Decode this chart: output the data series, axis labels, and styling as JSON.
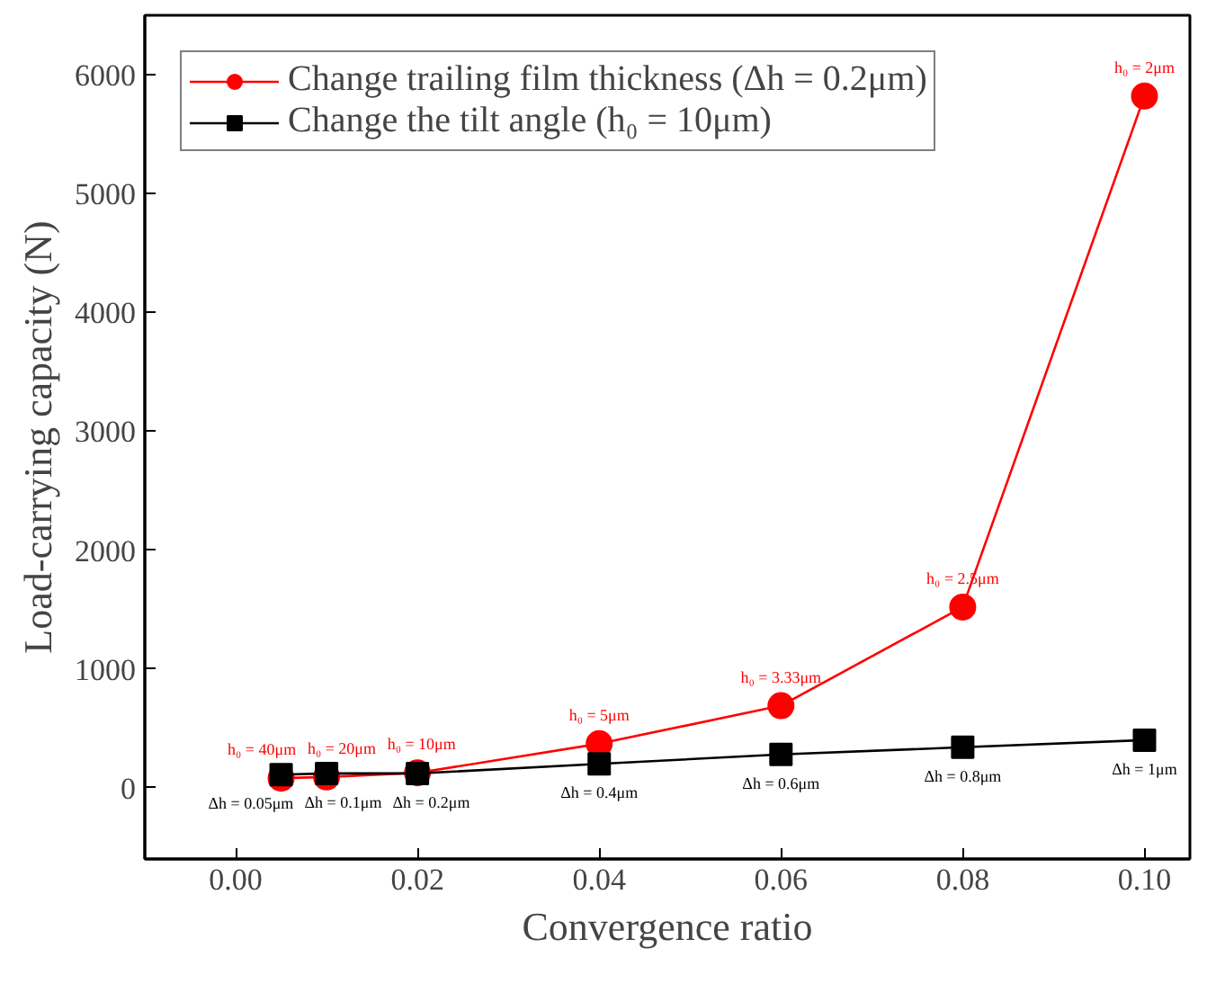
{
  "chart_data": {
    "type": "line",
    "xlabel": "Convergence ratio",
    "ylabel": "Load-carrying capacity (N)",
    "x": [
      0.005,
      0.01,
      0.02,
      0.04,
      0.06,
      0.08,
      0.1
    ],
    "series": [
      {
        "name": "Change trailing film thickness (Δh = 0.2μm)",
        "color": "#ff0000",
        "marker": "circle",
        "values": [
          80,
          90,
          125,
          370,
          690,
          1520,
          5820
        ]
      },
      {
        "name": "Change the tilt angle (h₀ = 10μm)",
        "color": "#000000",
        "marker": "square",
        "values": [
          110,
          120,
          120,
          200,
          280,
          340,
          400
        ]
      }
    ],
    "annotations": [
      {
        "text": "h₀ = 40μm",
        "x": 0.005,
        "y": 80
      },
      {
        "text": "h₀ = 20μm",
        "x": 0.01,
        "y": 90
      },
      {
        "text": "h₀ = 10μm",
        "x": 0.02,
        "y": 125
      },
      {
        "text": "h₀ = 5μm",
        "x": 0.04,
        "y": 370
      },
      {
        "text": "h₀ = 3.33μm",
        "x": 0.06,
        "y": 690
      },
      {
        "text": "h₀ = 2.5μm",
        "x": 0.08,
        "y": 1520
      },
      {
        "text": "h₀ = 2μm",
        "x": 0.1,
        "y": 5820
      },
      {
        "text": "Δh = 0.05μm",
        "x": 0.005,
        "y": 110
      },
      {
        "text": "Δh = 0.1μm",
        "x": 0.01,
        "y": 120
      },
      {
        "text": "Δh = 0.2μm",
        "x": 0.02,
        "y": 120
      },
      {
        "text": "Δh = 0.4μm",
        "x": 0.04,
        "y": 200
      },
      {
        "text": "Δh = 0.6μm",
        "x": 0.06,
        "y": 280
      },
      {
        "text": "Δh = 0.8μm",
        "x": 0.08,
        "y": 340
      },
      {
        "text": "Δh = 1μm",
        "x": 0.1,
        "y": 400
      }
    ],
    "xlim": [
      -0.01,
      0.105
    ],
    "ylim": [
      -600,
      6500
    ],
    "xticks": [
      {
        "value": 0,
        "label": "0.00"
      },
      {
        "value": 0.02,
        "label": "0.02"
      },
      {
        "value": 0.04,
        "label": "0.04"
      },
      {
        "value": 0.06,
        "label": "0.06"
      },
      {
        "value": 0.08,
        "label": "0.08"
      },
      {
        "value": 0.1,
        "label": "0.10"
      }
    ],
    "yticks": [
      0,
      1000,
      2000,
      3000,
      4000,
      5000,
      6000
    ],
    "grid": false,
    "legend": "top left",
    "line_style": "solid"
  }
}
